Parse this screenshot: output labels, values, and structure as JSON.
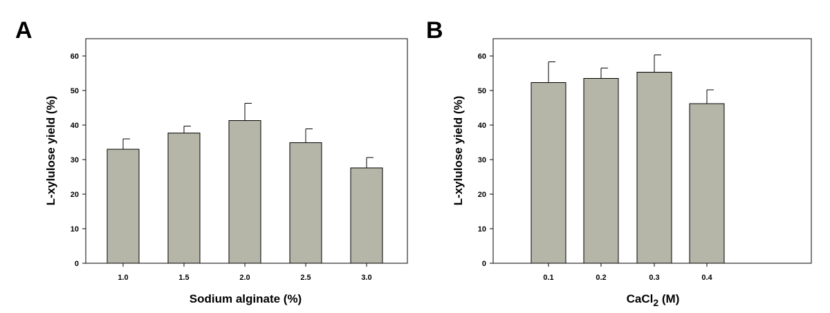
{
  "chart_data": [
    {
      "type": "bar",
      "panel_label": "A",
      "categories": [
        "1.0",
        "1.5",
        "2.0",
        "2.5",
        "3.0"
      ],
      "values": [
        33,
        37.7,
        41.3,
        34.9,
        27.6
      ],
      "errors": [
        3.0,
        2.0,
        5.0,
        4.0,
        3.0
      ],
      "xlabel": "Sodium alginate (%)",
      "ylabel": "L-xylulose yield (%)",
      "ylim": [
        0,
        65
      ],
      "yticks": [
        0,
        10,
        20,
        30,
        40,
        50,
        60
      ],
      "ytick_labels": [
        "0",
        "10",
        "20",
        "30",
        "40",
        "50",
        "60"
      ],
      "bar_color": "#b5b5a8"
    },
    {
      "type": "bar",
      "panel_label": "B",
      "categories": [
        "0.1",
        "0.2",
        "0.3",
        "0.4"
      ],
      "values": [
        52.3,
        53.5,
        55.3,
        46.2
      ],
      "errors": [
        6.0,
        3.0,
        5.0,
        4.0
      ],
      "xlabel_main": "CaCl",
      "xlabel_sub": "2",
      "xlabel_unit": " (M)",
      "ylabel": "L-xylulose yield (%)",
      "ylim": [
        0,
        65
      ],
      "yticks": [
        0,
        10,
        20,
        30,
        40,
        50,
        60
      ],
      "ytick_labels": [
        "0",
        "10",
        "20",
        "30",
        "40",
        "50",
        "60"
      ],
      "bar_color": "#b5b5a8"
    }
  ]
}
